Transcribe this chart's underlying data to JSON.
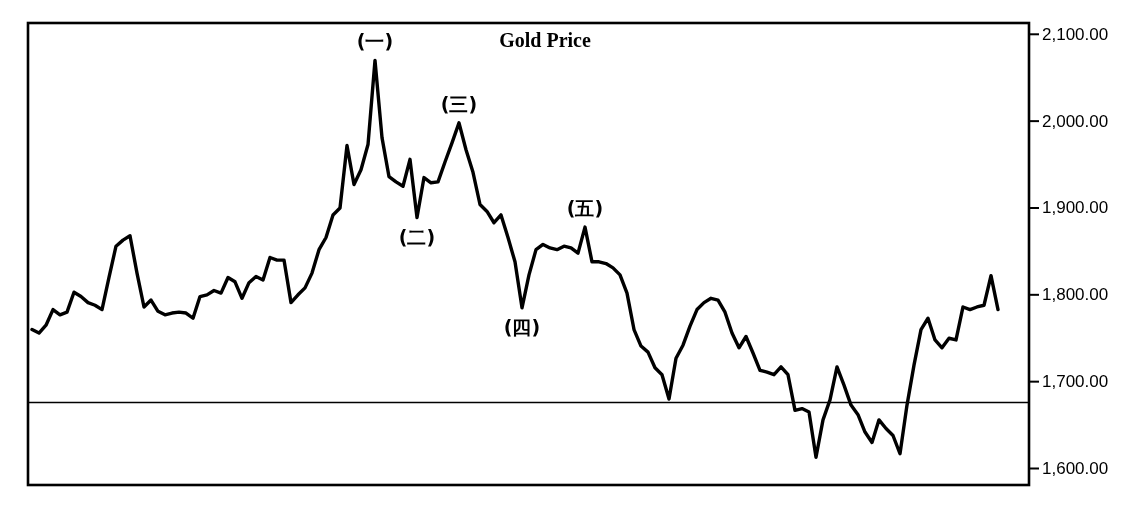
{
  "chart_data": {
    "type": "line",
    "title": "Gold Price",
    "categories": [
      null,
      null,
      null,
      null,
      null,
      null,
      null,
      null,
      null,
      null,
      null,
      null,
      null,
      null,
      null,
      null,
      null,
      null,
      null,
      null,
      null,
      null,
      null,
      null,
      null,
      null,
      null,
      null,
      null,
      null,
      null,
      null,
      null,
      null,
      null,
      null,
      null,
      null,
      null,
      null,
      null,
      null,
      null,
      null,
      null,
      null,
      null,
      null,
      null,
      null,
      null,
      null,
      null,
      null,
      null,
      null,
      null,
      null,
      null,
      null,
      null,
      null,
      null,
      null,
      null,
      null,
      null,
      null,
      null,
      null,
      null,
      null,
      null,
      null,
      null,
      null,
      null,
      null,
      null,
      null,
      null,
      null,
      null,
      null,
      null,
      null,
      null,
      null,
      null,
      null,
      null,
      null,
      null,
      null,
      null,
      null,
      null,
      null,
      null,
      null,
      null,
      null,
      null,
      null,
      null,
      null,
      null,
      null,
      null,
      null,
      null,
      null,
      null,
      null,
      null,
      null,
      null,
      null,
      null,
      null,
      null,
      null,
      null,
      null,
      null,
      null,
      null,
      null,
      null,
      null,
      null,
      null,
      null,
      null,
      null,
      null,
      null,
      null,
      null
    ],
    "series": [
      {
        "color": "#000000",
        "values": [
          1760,
          1756,
          1765,
          1783,
          1777,
          1780,
          1803,
          1798,
          1791,
          1788,
          1783,
          1820,
          1856,
          1863,
          1868,
          1825,
          1786,
          1794,
          1781,
          1777,
          1779,
          1780,
          1779,
          1773,
          1798,
          1800,
          1805,
          1802,
          1820,
          1815,
          1796,
          1814,
          1821,
          1817,
          1843,
          1840,
          1840,
          1791,
          1800,
          1808,
          1825,
          1852,
          1866,
          1892,
          1900,
          1972,
          1927,
          1944,
          1973,
          2070,
          1981,
          1936,
          1930,
          1925,
          1956,
          1889,
          1935,
          1929,
          1930,
          1953,
          1975,
          1998,
          1967,
          1941,
          1904,
          1896,
          1883,
          1892,
          1866,
          1838,
          1785,
          1823,
          1852,
          1858,
          1854,
          1852,
          1856,
          1854,
          1848,
          1878,
          1838,
          1838,
          1836,
          1831,
          1823,
          1802,
          1760,
          1741,
          1734,
          1716,
          1708,
          1680,
          1727,
          1742,
          1764,
          1783,
          1791,
          1796,
          1794,
          1780,
          1756,
          1739,
          1752,
          1733,
          1713,
          1711,
          1708,
          1717,
          1708,
          1667,
          1669,
          1665,
          1613,
          1656,
          1679,
          1717,
          1696,
          1673,
          1662,
          1642,
          1630,
          1656,
          1646,
          1638,
          1617,
          1673,
          1719,
          1760,
          1773,
          1748,
          1739,
          1750,
          1748,
          1786,
          1783,
          1786,
          1788,
          1822,
          1783
        ]
      }
    ],
    "ylim": [
      1581,
      2113
    ],
    "yticks": [
      {
        "value": 1600,
        "label": "1,600.00"
      },
      {
        "value": 1700,
        "label": "1,700.00"
      },
      {
        "value": 1800,
        "label": "1,800.00"
      },
      {
        "value": 1900,
        "label": "1,900.00"
      },
      {
        "value": 2000,
        "label": "2,000.00"
      },
      {
        "value": 2100,
        "label": "2,100.00"
      }
    ],
    "ref_lines": [
      {
        "axis": "y",
        "value": 1676,
        "color": "#000000"
      }
    ],
    "annotations": [
      {
        "text": "(一)",
        "y": 2070
      },
      {
        "text": "(二)",
        "y": 1889
      },
      {
        "text": "(三)",
        "y": 1998
      },
      {
        "text": "(四)",
        "y": 1785
      },
      {
        "text": "(五)",
        "y": 1878
      }
    ]
  }
}
